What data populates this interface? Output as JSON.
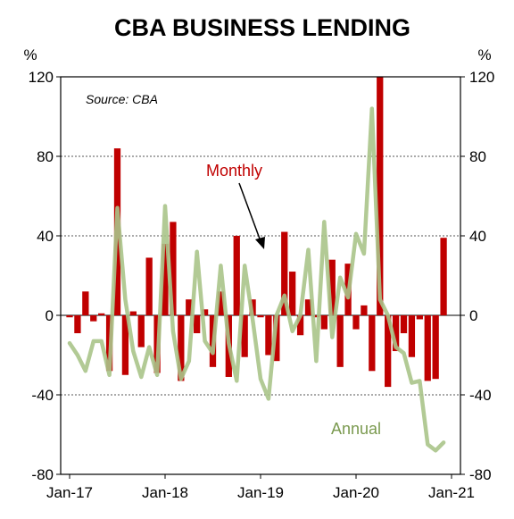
{
  "chart_data": {
    "type": "bar",
    "title": "CBA BUSINESS LENDING",
    "source_note": "Source: CBA",
    "units": {
      "left": "%",
      "right": "%"
    },
    "ylim": [
      -80,
      120
    ],
    "yticks": [
      -80,
      -40,
      0,
      40,
      80,
      120
    ],
    "ytick_labels": [
      "-80",
      "-40",
      "0",
      "40",
      "80",
      "120"
    ],
    "xtick_labels": [
      "Jan-17",
      "Jan-18",
      "Jan-19",
      "Jan-20",
      "Jan-21"
    ],
    "xtick_index": [
      0,
      12,
      24,
      36,
      48
    ],
    "grid": "dashed-horizontal",
    "months": [
      "2017-01",
      "2017-02",
      "2017-03",
      "2017-04",
      "2017-05",
      "2017-06",
      "2017-07",
      "2017-08",
      "2017-09",
      "2017-10",
      "2017-11",
      "2017-12",
      "2018-01",
      "2018-02",
      "2018-03",
      "2018-04",
      "2018-05",
      "2018-06",
      "2018-07",
      "2018-08",
      "2018-09",
      "2018-10",
      "2018-11",
      "2018-12",
      "2019-01",
      "2019-02",
      "2019-03",
      "2019-04",
      "2019-05",
      "2019-06",
      "2019-07",
      "2019-08",
      "2019-09",
      "2019-10",
      "2019-11",
      "2019-12",
      "2020-01",
      "2020-02",
      "2020-03",
      "2020-04",
      "2020-05",
      "2020-06",
      "2020-07",
      "2020-08",
      "2020-09",
      "2020-10",
      "2020-11",
      "2020-12",
      "2021-01"
    ],
    "series": [
      {
        "name": "Monthly",
        "kind": "bar",
        "color": "#c00000",
        "values": [
          -1,
          -9,
          12,
          -3,
          1,
          -28,
          84,
          -30,
          2,
          -16,
          29,
          -29,
          36,
          47,
          -33,
          8,
          -9,
          3,
          -26,
          12,
          -31,
          40,
          -21,
          8,
          -1,
          -20,
          -23,
          42,
          22,
          -10,
          8,
          -1,
          -7,
          28,
          -26,
          26,
          -7,
          5,
          -28,
          120,
          -36,
          -18,
          -9,
          -21,
          -2,
          -33,
          -32,
          39,
          0
        ]
      },
      {
        "name": "Annual",
        "kind": "line",
        "color": "#aac48a",
        "values": [
          -14,
          -20,
          -28,
          -13,
          -13,
          -30,
          54,
          8,
          -18,
          -31,
          -16,
          -30,
          55,
          -8,
          -32,
          -23,
          32,
          -13,
          -19,
          25,
          -14,
          -33,
          25,
          -2,
          -32,
          -42,
          0,
          10,
          -8,
          0,
          33,
          -23,
          47,
          -11,
          19,
          9,
          41,
          31,
          104,
          8,
          0,
          -16,
          -19,
          -34,
          -33,
          -65,
          -68,
          -64,
          0
        ]
      }
    ],
    "annotations": [
      {
        "text": "Monthly",
        "color": "#c00000"
      },
      {
        "text": "Annual",
        "color": "#7b9a50"
      }
    ]
  }
}
